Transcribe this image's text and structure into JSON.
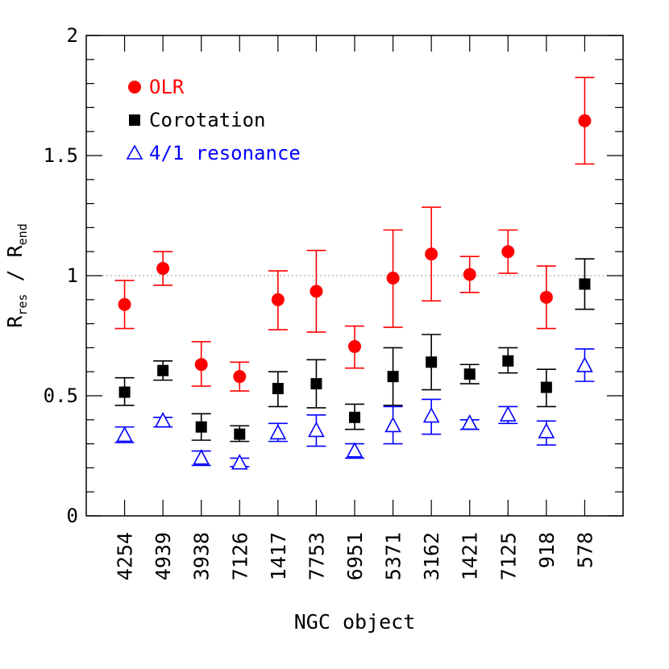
{
  "chart_data": {
    "type": "scatter",
    "title": "",
    "xlabel": "NGC object",
    "ylabel": {
      "base": "R",
      "sub1": "res",
      "sep": " / ",
      "base2": "R",
      "sub2": "end"
    },
    "ylim": [
      0,
      2
    ],
    "yticks": [
      0,
      0.5,
      1,
      1.5,
      2
    ],
    "ytick_labels": [
      "0",
      "0.5",
      "1",
      "1.5",
      "2"
    ],
    "reference_line": 1,
    "categories": [
      "4254",
      "4939",
      "3938",
      "7126",
      "1417",
      "7753",
      "6951",
      "5371",
      "3162",
      "1421",
      "7125",
      "918",
      "578"
    ],
    "legend_position": "top-left",
    "series": [
      {
        "name": "OLR",
        "marker": "circle",
        "color": "#ff0000",
        "values": [
          0.88,
          1.03,
          0.63,
          0.58,
          0.9,
          0.935,
          0.705,
          0.99,
          1.09,
          1.005,
          1.1,
          0.91,
          1.645
        ],
        "err_low": [
          0.78,
          0.96,
          0.54,
          0.52,
          0.775,
          0.765,
          0.615,
          0.785,
          0.895,
          0.93,
          1.01,
          0.78,
          1.465
        ],
        "err_high": [
          0.98,
          1.1,
          0.725,
          0.64,
          1.02,
          1.105,
          0.79,
          1.19,
          1.285,
          1.08,
          1.19,
          1.04,
          1.825
        ]
      },
      {
        "name": "Corotation",
        "marker": "square",
        "color": "#000000",
        "values": [
          0.515,
          0.605,
          0.37,
          0.34,
          0.53,
          0.55,
          0.41,
          0.58,
          0.64,
          0.59,
          0.645,
          0.535,
          0.965
        ],
        "err_low": [
          0.46,
          0.565,
          0.315,
          0.31,
          0.455,
          0.45,
          0.36,
          0.46,
          0.525,
          0.55,
          0.595,
          0.455,
          0.86
        ],
        "err_high": [
          0.575,
          0.645,
          0.425,
          0.375,
          0.6,
          0.65,
          0.465,
          0.7,
          0.755,
          0.63,
          0.7,
          0.61,
          1.07
        ]
      },
      {
        "name": "4/1 resonance",
        "marker": "triangle",
        "color": "#0000ff",
        "values": [
          0.335,
          0.395,
          0.24,
          0.22,
          0.345,
          0.355,
          0.27,
          0.375,
          0.415,
          0.385,
          0.42,
          0.35,
          0.625
        ],
        "err_low": [
          0.305,
          0.37,
          0.21,
          0.205,
          0.31,
          0.29,
          0.24,
          0.3,
          0.34,
          0.36,
          0.385,
          0.295,
          0.56
        ],
        "err_high": [
          0.37,
          0.41,
          0.27,
          0.24,
          0.385,
          0.42,
          0.3,
          0.455,
          0.485,
          0.4,
          0.455,
          0.395,
          0.695
        ]
      }
    ]
  }
}
